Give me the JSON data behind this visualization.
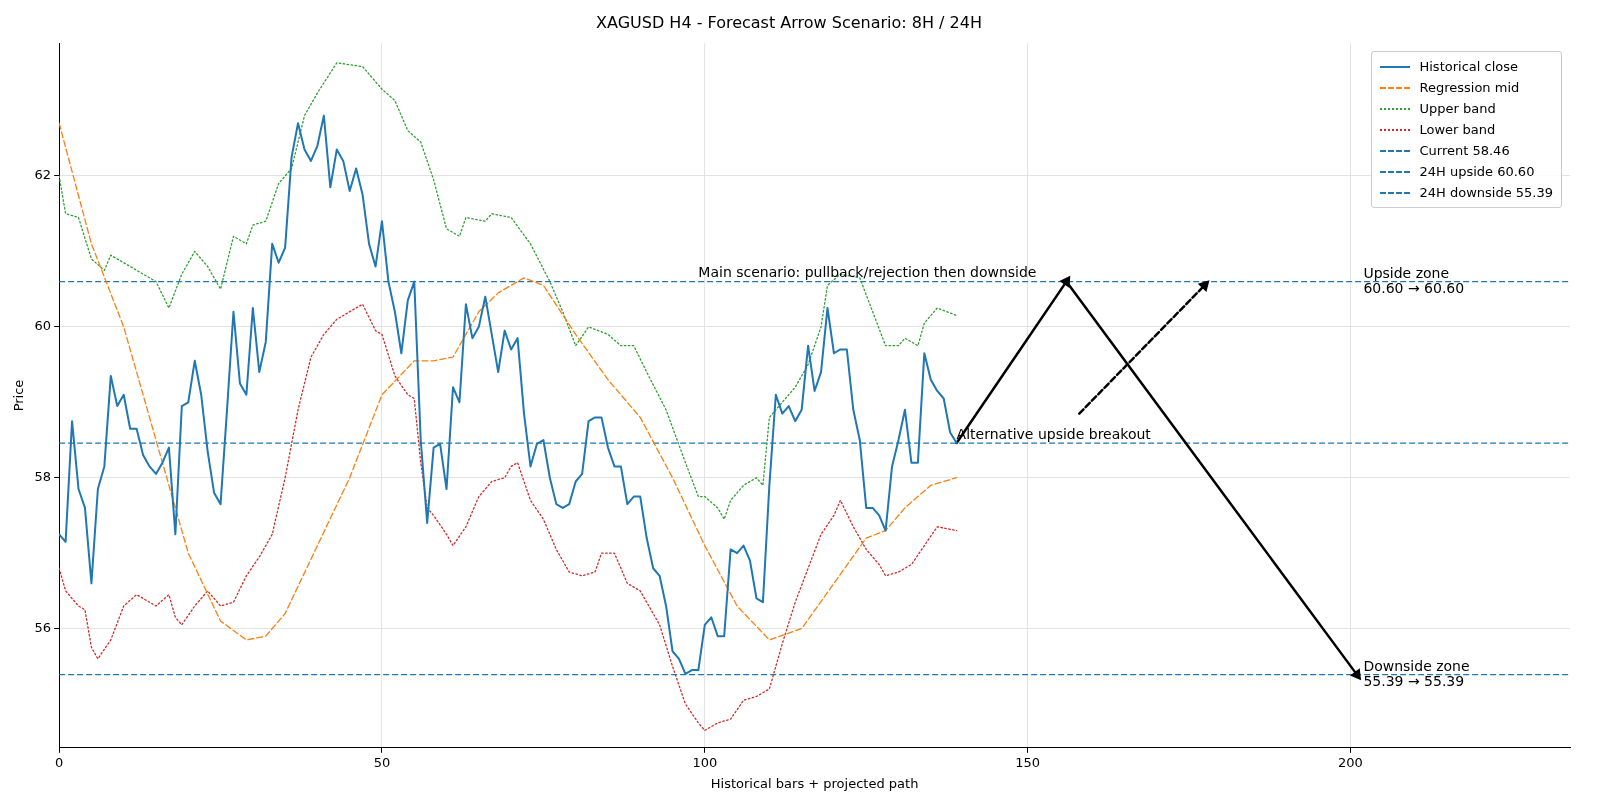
{
  "chart_data": {
    "type": "line",
    "title": "XAGUSD H4 - Forecast Arrow Scenario: 8H / 24H",
    "xlabel": "Historical bars + projected path",
    "ylabel": "Price",
    "xlim": [
      0,
      234
    ],
    "xticks": [
      0,
      50,
      100,
      150,
      200
    ],
    "ylim": [
      54.42,
      63.76
    ],
    "yticks": [
      56,
      58,
      60,
      62
    ],
    "grid": true,
    "legend": "top right",
    "series": [
      {
        "name": "Historical close",
        "color": "#1f77b4",
        "line_style": "solid",
        "x": [
          0,
          1,
          2,
          3,
          4,
          5,
          6,
          7,
          8,
          9,
          10,
          11,
          12,
          13,
          14,
          15,
          16,
          17,
          18,
          19,
          20,
          21,
          22,
          23,
          24,
          25,
          26,
          27,
          28,
          29,
          30,
          31,
          32,
          33,
          34,
          35,
          36,
          37,
          38,
          39,
          40,
          41,
          42,
          43,
          44,
          45,
          46,
          47,
          48,
          49,
          50,
          51,
          52,
          53,
          54,
          55,
          56,
          57,
          58,
          59,
          60,
          61,
          62,
          63,
          64,
          65,
          66,
          67,
          68,
          69,
          70,
          71,
          72,
          73,
          74,
          75,
          76,
          77,
          78,
          79,
          80,
          81,
          82,
          83,
          84,
          85,
          86,
          87,
          88,
          89,
          90,
          91,
          92,
          93,
          94,
          95,
          96,
          97,
          98,
          99,
          100,
          101,
          102,
          103,
          104,
          105,
          106,
          107,
          108,
          109,
          110,
          111,
          112,
          113,
          114,
          115,
          116,
          117,
          118,
          119,
          120,
          121,
          122,
          123,
          124,
          125,
          126,
          127,
          128,
          129,
          130,
          131,
          132,
          133,
          134,
          135,
          136,
          137,
          138,
          139
        ],
        "values": [
          57.25,
          57.15,
          58.75,
          57.85,
          57.6,
          56.6,
          57.85,
          58.15,
          59.35,
          58.95,
          59.1,
          58.65,
          58.65,
          58.3,
          58.15,
          58.05,
          58.2,
          58.4,
          57.25,
          58.95,
          59.0,
          59.55,
          59.1,
          58.35,
          57.8,
          57.65,
          58.9,
          60.2,
          59.25,
          59.1,
          60.25,
          59.4,
          59.8,
          61.1,
          60.85,
          61.05,
          62.25,
          62.7,
          62.35,
          62.2,
          62.4,
          62.8,
          61.85,
          62.35,
          62.2,
          61.8,
          62.1,
          61.75,
          61.1,
          60.8,
          61.4,
          60.6,
          60.2,
          59.65,
          60.35,
          60.6,
          58.5,
          57.4,
          58.4,
          58.45,
          57.85,
          59.2,
          59.0,
          60.3,
          59.85,
          60.0,
          60.4,
          59.9,
          59.4,
          59.95,
          59.7,
          59.85,
          58.85,
          58.15,
          58.45,
          58.5,
          58.0,
          57.65,
          57.6,
          57.65,
          57.95,
          58.05,
          58.75,
          58.8,
          58.8,
          58.4,
          58.15,
          58.15,
          57.65,
          57.75,
          57.75,
          57.2,
          56.8,
          56.7,
          56.3,
          55.7,
          55.6,
          55.4,
          55.45,
          55.45,
          56.05,
          56.15,
          55.9,
          55.9,
          57.05,
          57.0,
          57.1,
          56.9,
          56.4,
          56.35,
          57.9,
          59.1,
          58.85,
          58.95,
          58.75,
          58.9,
          59.75,
          59.15,
          59.4,
          60.25,
          59.65,
          59.7,
          59.7,
          58.9,
          58.5,
          57.6,
          57.6,
          57.5,
          57.3,
          58.15,
          58.5,
          58.9,
          58.2,
          58.2,
          59.65,
          59.3,
          59.15,
          59.05,
          58.6,
          58.46
        ]
      },
      {
        "name": "Regression mid",
        "color": "#ff7f0e",
        "line_style": "dashed",
        "x": [
          0,
          5,
          10,
          15,
          20,
          25,
          29,
          32,
          35,
          40,
          45,
          50,
          55,
          58,
          61,
          65,
          68,
          72,
          75,
          80,
          85,
          90,
          95,
          100,
          105,
          110,
          115,
          120,
          125,
          128,
          131,
          135,
          139
        ],
        "values": [
          62.7,
          61.1,
          60.0,
          58.5,
          57.0,
          56.1,
          55.85,
          55.9,
          56.2,
          57.1,
          58.0,
          59.1,
          59.55,
          59.55,
          59.6,
          60.2,
          60.45,
          60.65,
          60.55,
          59.9,
          59.3,
          58.8,
          58.0,
          57.1,
          56.3,
          55.85,
          56.0,
          56.6,
          57.2,
          57.3,
          57.6,
          57.9,
          58.0
        ]
      },
      {
        "name": "Upper band",
        "color": "#2ca02c",
        "line_style": "dotted",
        "x": [
          0,
          1,
          3,
          5,
          7,
          8,
          12,
          15,
          17,
          19,
          21,
          23,
          25,
          27,
          29,
          30,
          32,
          34,
          36,
          38,
          40,
          43,
          47,
          50,
          52,
          54,
          56,
          58,
          60,
          62,
          63,
          66,
          67,
          70,
          73,
          76,
          78,
          80,
          82,
          85,
          87,
          89,
          91,
          94,
          97,
          99,
          100,
          102,
          103,
          104,
          106,
          108,
          109,
          110,
          112,
          114,
          116,
          118,
          119,
          121,
          124,
          126,
          128,
          130,
          131,
          133,
          134,
          136,
          139
        ],
        "values": [
          62.0,
          61.5,
          61.45,
          60.9,
          60.75,
          60.95,
          60.75,
          60.6,
          60.25,
          60.7,
          61.0,
          60.8,
          60.5,
          61.2,
          61.1,
          61.35,
          61.4,
          61.9,
          62.1,
          62.8,
          63.1,
          63.5,
          63.45,
          63.15,
          63.0,
          62.6,
          62.45,
          61.95,
          61.3,
          61.2,
          61.45,
          61.4,
          61.5,
          61.45,
          61.1,
          60.6,
          60.2,
          59.75,
          60.0,
          59.9,
          59.75,
          59.75,
          59.4,
          58.9,
          58.2,
          57.75,
          57.75,
          57.6,
          57.45,
          57.7,
          57.9,
          58.0,
          57.9,
          58.8,
          59.0,
          59.2,
          59.5,
          60.0,
          60.55,
          60.7,
          60.65,
          60.2,
          59.75,
          59.75,
          59.85,
          59.75,
          60.05,
          60.25,
          60.15
        ]
      },
      {
        "name": "Lower band",
        "color": "#d62728",
        "line_style": "dotted",
        "x": [
          0,
          1,
          3,
          4,
          5,
          6,
          8,
          10,
          12,
          14,
          15,
          17,
          18,
          19,
          21,
          23,
          25,
          27,
          29,
          31,
          33,
          35,
          37,
          39,
          41,
          43,
          46,
          47,
          49,
          50,
          52,
          54,
          55,
          56,
          57,
          58,
          60,
          61,
          63,
          65,
          67,
          69,
          70,
          71,
          73,
          75,
          77,
          79,
          81,
          83,
          84,
          86,
          88,
          90,
          92,
          93,
          95,
          97,
          99,
          100,
          102,
          104,
          106,
          108,
          110,
          112,
          114,
          116,
          118,
          120,
          121,
          123,
          125,
          127,
          128,
          130,
          132,
          134,
          136,
          139
        ],
        "values": [
          56.8,
          56.5,
          56.3,
          56.25,
          55.75,
          55.6,
          55.85,
          56.3,
          56.45,
          56.35,
          56.3,
          56.45,
          56.15,
          56.05,
          56.3,
          56.5,
          56.3,
          56.35,
          56.7,
          56.95,
          57.25,
          58.0,
          58.9,
          59.6,
          59.9,
          60.1,
          60.25,
          60.3,
          59.95,
          59.9,
          59.35,
          59.1,
          59.05,
          58.2,
          57.6,
          57.5,
          57.25,
          57.1,
          57.35,
          57.75,
          57.95,
          58.0,
          58.15,
          58.2,
          57.7,
          57.45,
          57.05,
          56.75,
          56.7,
          56.75,
          57.0,
          57.0,
          56.6,
          56.5,
          56.2,
          56.05,
          55.5,
          55.0,
          54.75,
          54.65,
          54.75,
          54.8,
          55.05,
          55.1,
          55.2,
          55.8,
          56.35,
          56.8,
          57.25,
          57.5,
          57.7,
          57.35,
          57.05,
          56.85,
          56.7,
          56.75,
          56.85,
          57.1,
          57.35,
          57.3
        ]
      },
      {
        "color": "#000000",
        "line_style": "solid",
        "marker": "triangle",
        "x": [
          139,
          156,
          201
        ],
        "values": [
          58.46,
          60.6,
          55.39
        ]
      },
      {
        "color": "#000000",
        "line_style": "dashed",
        "marker": "triangle",
        "x": [
          158,
          177.4
        ],
        "values": [
          58.85,
          60.55
        ]
      }
    ],
    "ref_lines": [
      {
        "axis": "y",
        "value": 58.46,
        "label": "Current 58.46",
        "color": "#1f77b4",
        "line_style": "dashed"
      },
      {
        "axis": "y",
        "value": 60.6,
        "label": "24H upside 60.60",
        "color": "#1f77b4",
        "line_style": "dashed"
      },
      {
        "axis": "y",
        "value": 55.39,
        "label": "24H downside 55.39",
        "color": "#1f77b4",
        "line_style": "dashed"
      }
    ],
    "annotations": [
      {
        "text": "Main scenario: pullback/rejection then downside",
        "x": 99,
        "y": 60.6
      },
      {
        "text": "Alternative upside breakout",
        "x": 139,
        "y": 58.46
      },
      {
        "text": "Upside zone\n60.60 → 60.60",
        "x": 202,
        "y": 60.6
      },
      {
        "text": "Downside zone\n55.39 → 55.39",
        "x": 202,
        "y": 55.39
      }
    ]
  }
}
